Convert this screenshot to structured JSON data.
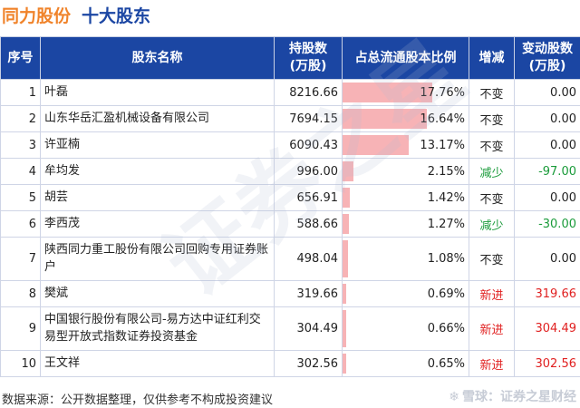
{
  "title": {
    "company": "同力股份",
    "subject": "十大股东"
  },
  "table": {
    "headers": {
      "rank": "序号",
      "name": "股东名称",
      "shares": "持股数\n(万股)",
      "pct": "占总流通股本比例",
      "change": "增减",
      "change_amount": "变动股数\n(万股)"
    },
    "rows": [
      {
        "rank": "1",
        "name": "叶磊",
        "shares": "8216.66",
        "pct_label": "17.76%",
        "pct": 17.76,
        "change": "不变",
        "change_type": "same",
        "change_amount": "0.00"
      },
      {
        "rank": "2",
        "name": "山东华岳汇盈机械设备有限公司",
        "shares": "7694.15",
        "pct_label": "16.64%",
        "pct": 16.64,
        "change": "不变",
        "change_type": "same",
        "change_amount": "0.00"
      },
      {
        "rank": "3",
        "name": "许亚楠",
        "shares": "6090.43",
        "pct_label": "13.17%",
        "pct": 13.17,
        "change": "不变",
        "change_type": "same",
        "change_amount": "0.00"
      },
      {
        "rank": "4",
        "name": "牟均发",
        "shares": "996.00",
        "pct_label": "2.15%",
        "pct": 2.15,
        "change": "减少",
        "change_type": "down",
        "change_amount": "-97.00"
      },
      {
        "rank": "5",
        "name": "胡芸",
        "shares": "656.91",
        "pct_label": "1.42%",
        "pct": 1.42,
        "change": "不变",
        "change_type": "same",
        "change_amount": "0.00"
      },
      {
        "rank": "6",
        "name": "李西茂",
        "shares": "588.66",
        "pct_label": "1.27%",
        "pct": 1.27,
        "change": "减少",
        "change_type": "down",
        "change_amount": "-30.00"
      },
      {
        "rank": "7",
        "name": "陕西同力重工股份有限公司回购专用证券账户",
        "shares": "498.04",
        "pct_label": "1.08%",
        "pct": 1.08,
        "change": "不变",
        "change_type": "same",
        "change_amount": "0.00"
      },
      {
        "rank": "8",
        "name": "樊斌",
        "shares": "319.66",
        "pct_label": "0.69%",
        "pct": 0.69,
        "change": "新进",
        "change_type": "new",
        "change_amount": "319.66"
      },
      {
        "rank": "9",
        "name": "中国银行股份有限公司-易方达中证红利交易型开放式指数证券投资基金",
        "shares": "304.49",
        "pct_label": "0.66%",
        "pct": 0.66,
        "change": "新进",
        "change_type": "new",
        "change_amount": "304.49"
      },
      {
        "rank": "10",
        "name": "王文祥",
        "shares": "302.56",
        "pct_label": "0.65%",
        "pct": 0.65,
        "change": "新进",
        "change_type": "new",
        "change_amount": "302.56"
      }
    ],
    "pct_bar_max": 25
  },
  "footer": {
    "source": "数据来源：公开数据整理，仅供参考不构成投资建议",
    "brand": "雪球：证券之星财经"
  },
  "watermark": "证券之星",
  "colors": {
    "title_orange": "#f0832a",
    "title_blue": "#1b46a3",
    "header_bg": "#1b46a3",
    "bar": "#f7b3b6",
    "decrease": "#1a9b3a",
    "new": "#e02020"
  }
}
